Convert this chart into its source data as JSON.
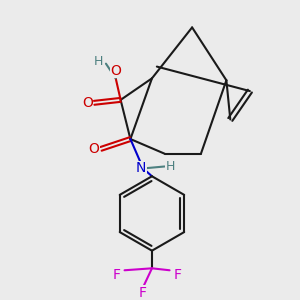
{
  "bg_color": "#ebebeb",
  "bond_color": "#1a1a1a",
  "bond_lw": 1.5,
  "atom_colors": {
    "O": "#cc0000",
    "N": "#0000cc",
    "F": "#cc00cc",
    "H_gray": "#4d8080",
    "C": "#1a1a1a"
  },
  "font_size_atom": 10,
  "font_size_small": 9
}
